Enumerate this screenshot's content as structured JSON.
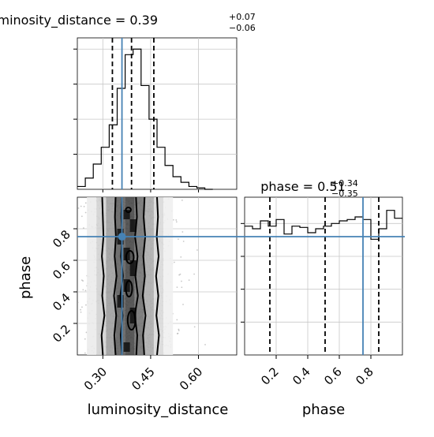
{
  "chart_data": [
    {
      "type": "histogram",
      "panel": "marginal-luminosity-distance",
      "title_param": "luminosity_distance",
      "title_value": "0.39",
      "title_plus": "+0.07",
      "title_minus": "−0.06",
      "xlim": [
        0.22,
        0.72
      ],
      "ylim": [
        0,
        1.08
      ],
      "grid": true,
      "bin_edges": [
        0.22,
        0.245,
        0.27,
        0.295,
        0.32,
        0.345,
        0.37,
        0.395,
        0.42,
        0.445,
        0.47,
        0.495,
        0.52,
        0.545,
        0.57,
        0.595,
        0.62,
        0.645
      ],
      "counts": [
        0.02,
        0.08,
        0.18,
        0.3,
        0.46,
        0.72,
        0.96,
        1.0,
        0.74,
        0.5,
        0.3,
        0.17,
        0.09,
        0.05,
        0.02,
        0.01,
        0.0
      ],
      "quantile_lines": [
        0.33,
        0.39,
        0.46
      ],
      "truth": 0.36
    },
    {
      "type": "histogram",
      "panel": "marginal-phase",
      "title_param": "phase",
      "title_value": "0.51",
      "title_plus": "+0.34",
      "title_minus": "−0.35",
      "xlim": [
        0.0,
        1.0
      ],
      "ylim": [
        0,
        1.2
      ],
      "grid": true,
      "bin_edges": [
        0.0,
        0.05,
        0.1,
        0.15,
        0.2,
        0.25,
        0.3,
        0.35,
        0.4,
        0.45,
        0.5,
        0.55,
        0.6,
        0.65,
        0.7,
        0.75,
        0.8,
        0.85,
        0.9,
        0.95,
        1.0
      ],
      "counts": [
        0.98,
        0.96,
        1.02,
        0.98,
        1.03,
        0.92,
        0.98,
        0.97,
        0.93,
        0.96,
        0.98,
        1.0,
        1.02,
        1.03,
        1.05,
        1.03,
        0.88,
        0.96,
        1.1,
        1.04
      ],
      "quantile_lines": [
        0.16,
        0.51,
        0.85
      ],
      "truth": 0.75,
      "xticks": [
        "0.2",
        "0.4",
        "0.6",
        "0.8"
      ],
      "xlabel": "phase"
    },
    {
      "type": "2d-density",
      "panel": "joint-luminosity-distance-phase",
      "x_param": "luminosity_distance",
      "y_param": "phase",
      "xlim": [
        0.22,
        0.72
      ],
      "ylim": [
        0.0,
        1.0
      ],
      "grid": true,
      "xticks": [
        "0.30",
        "0.45",
        "0.60"
      ],
      "yticks": [
        "0.2",
        "0.4",
        "0.6",
        "0.8"
      ],
      "xlabel": "luminosity_distance",
      "ylabel": "phase",
      "truth": [
        0.36,
        0.75
      ],
      "density_columns": [
        {
          "x0": 0.25,
          "x1": 0.28,
          "shade": 0.92
        },
        {
          "x0": 0.28,
          "x1": 0.31,
          "shade": 0.82
        },
        {
          "x0": 0.31,
          "x1": 0.34,
          "shade": 0.62
        },
        {
          "x0": 0.34,
          "x1": 0.37,
          "shade": 0.38
        },
        {
          "x0": 0.37,
          "x1": 0.4,
          "shade": 0.28
        },
        {
          "x0": 0.4,
          "x1": 0.43,
          "shade": 0.45
        },
        {
          "x0": 0.43,
          "x1": 0.46,
          "shade": 0.68
        },
        {
          "x0": 0.46,
          "x1": 0.49,
          "shade": 0.85
        },
        {
          "x0": 0.49,
          "x1": 0.52,
          "shade": 0.94
        }
      ],
      "dark_cells": [
        [
          0.365,
          0.385,
          0.86,
          0.92
        ],
        [
          0.365,
          0.385,
          0.4,
          0.48
        ],
        [
          0.365,
          0.385,
          0.6,
          0.68
        ],
        [
          0.385,
          0.405,
          0.2,
          0.3
        ],
        [
          0.345,
          0.365,
          0.7,
          0.8
        ],
        [
          0.385,
          0.405,
          0.5,
          0.6
        ],
        [
          0.365,
          0.385,
          0.02,
          0.08
        ],
        [
          0.345,
          0.365,
          0.3,
          0.38
        ],
        [
          0.385,
          0.405,
          0.78,
          0.86
        ]
      ],
      "contours": [
        {
          "name": "outer",
          "x": [
            0.3,
            0.296,
            0.305,
            0.298,
            0.303,
            0.297,
            0.302,
            0.3,
            0.298
          ],
          "x_right": [
            0.47,
            0.476,
            0.468,
            0.474,
            0.467,
            0.475,
            0.469,
            0.473,
            0.47
          ]
        },
        {
          "name": "mid",
          "x": [
            0.34,
            0.336,
            0.342,
            0.335,
            0.343,
            0.337,
            0.341,
            0.338,
            0.34
          ],
          "x_right": [
            0.43,
            0.426,
            0.434,
            0.425,
            0.432,
            0.427,
            0.433,
            0.428,
            0.431
          ]
        },
        {
          "name": "inner",
          "x": [
            0.36,
            0.356,
            0.362,
            0.355,
            0.363,
            0.357,
            0.361,
            0.358,
            0.36
          ],
          "x_right": [
            0.405,
            0.408,
            0.4,
            0.41,
            0.402,
            0.409,
            0.401,
            0.407,
            0.404
          ]
        }
      ],
      "contour_y": [
        0.0,
        0.125,
        0.25,
        0.375,
        0.5,
        0.625,
        0.75,
        0.875,
        1.0
      ],
      "n_samples": 1800
    }
  ]
}
